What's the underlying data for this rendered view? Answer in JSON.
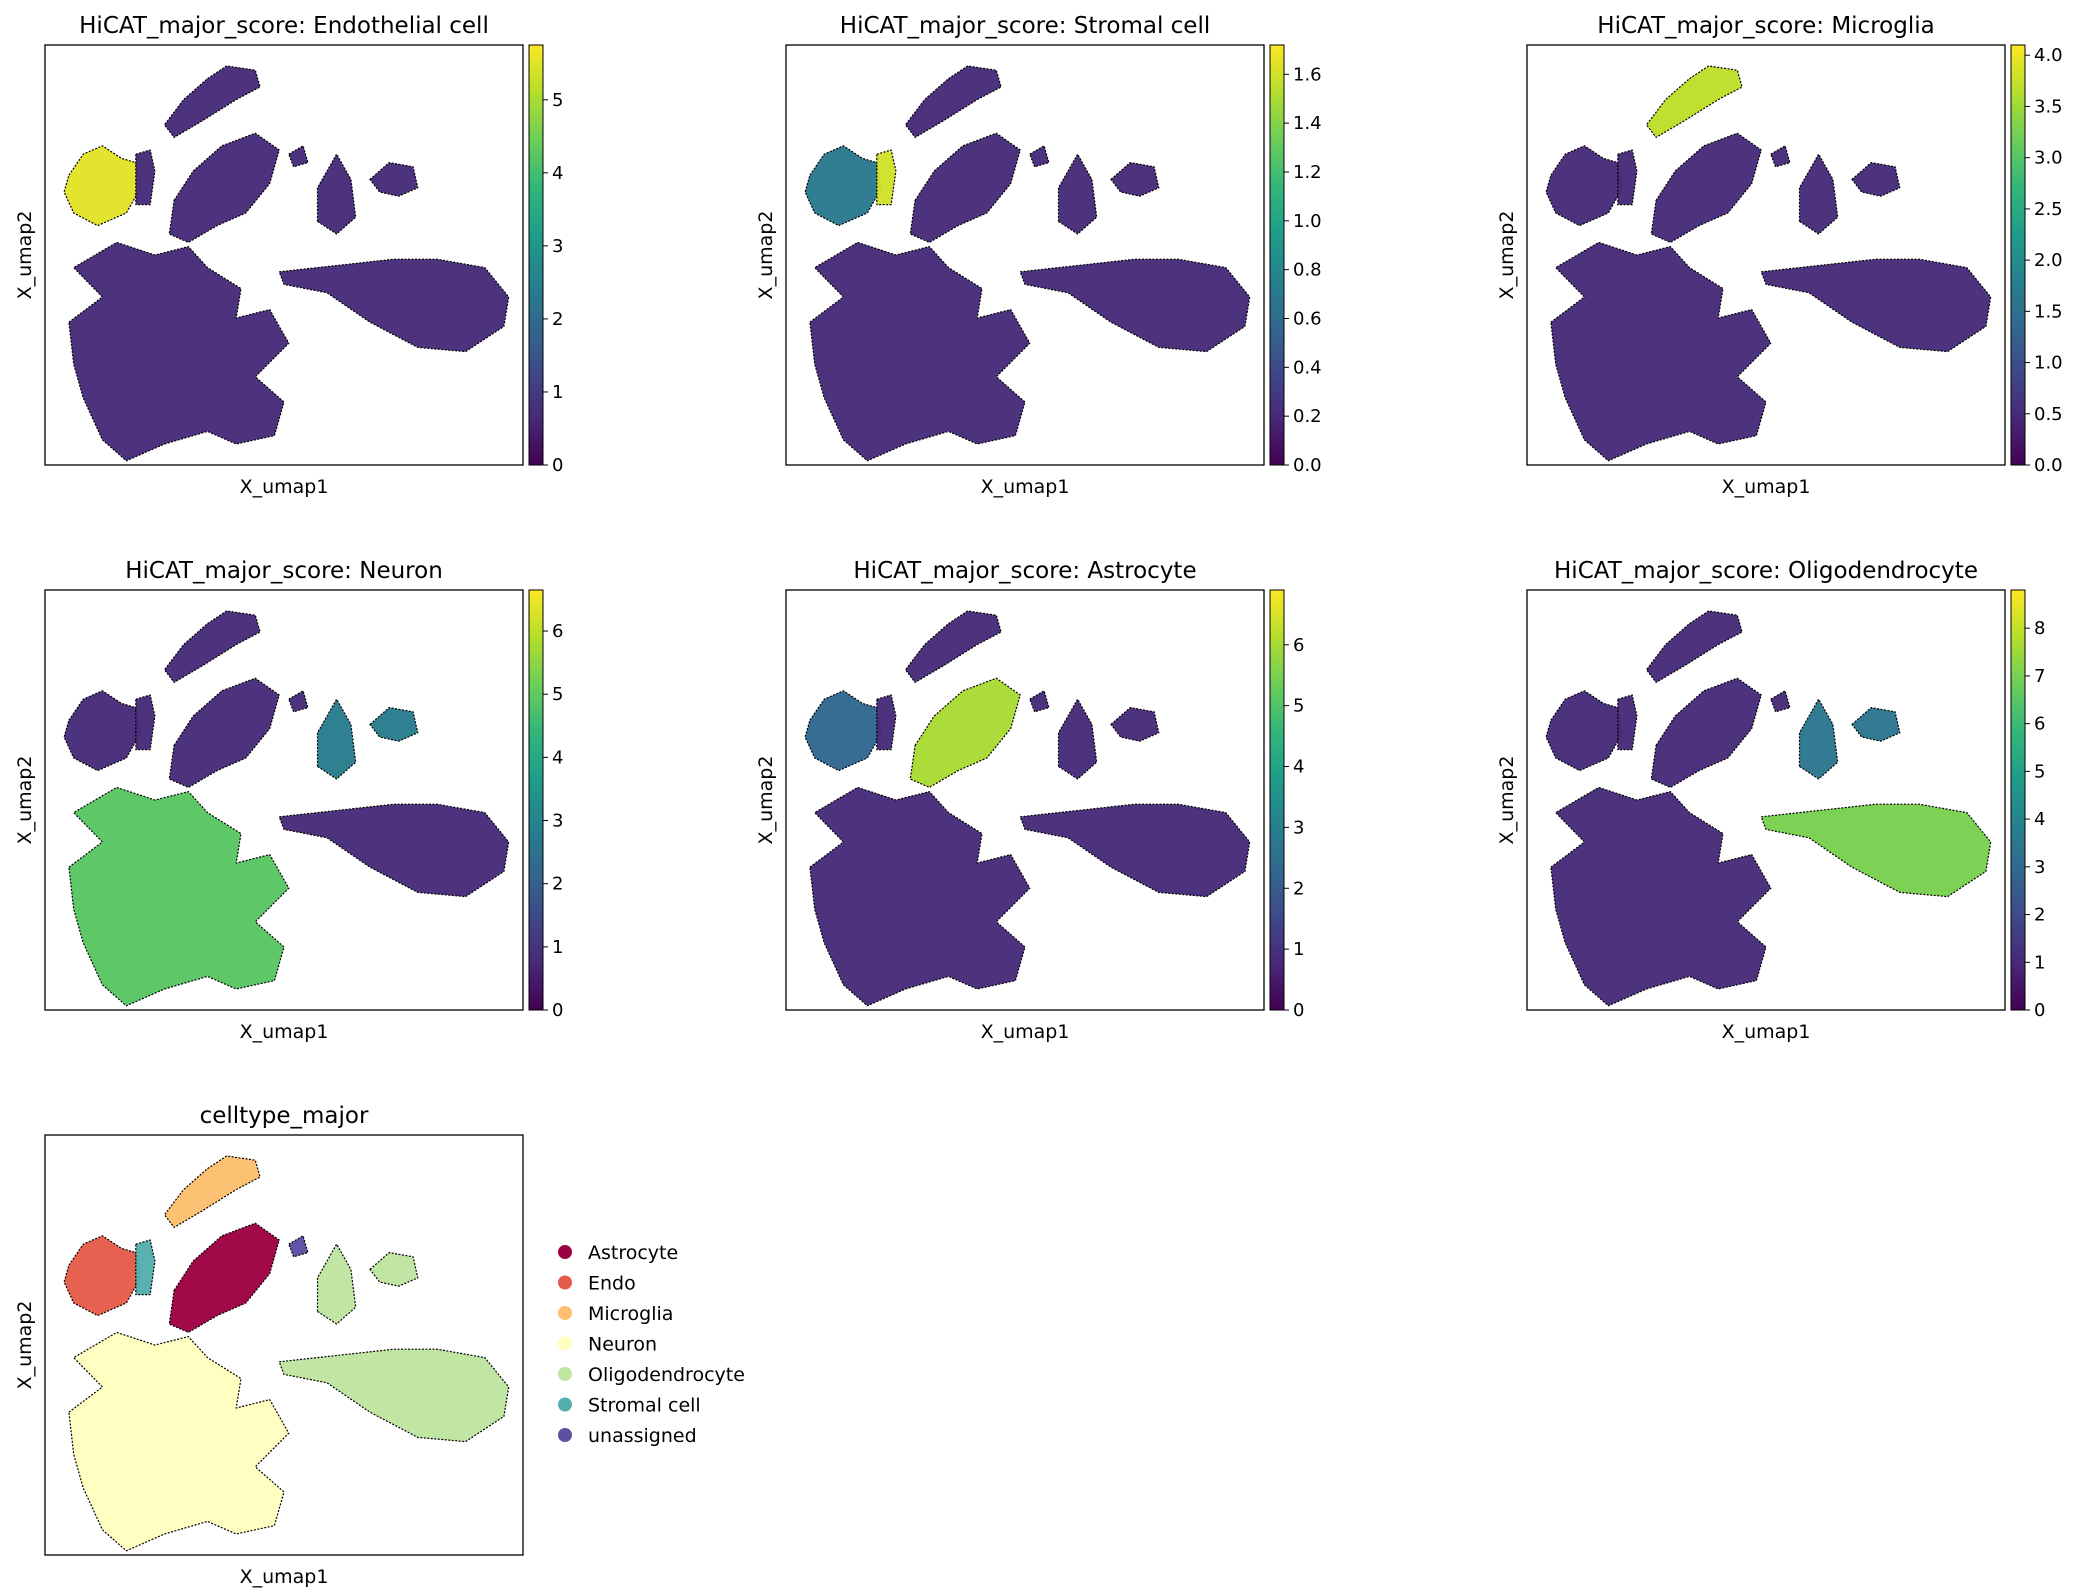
{
  "colors": {
    "viridis": [
      "#440154",
      "#482878",
      "#3e4989",
      "#31688e",
      "#26828e",
      "#1f9e89",
      "#35b779",
      "#6ece58",
      "#b5de2b",
      "#fde725"
    ],
    "background_cells": "#472c7a",
    "outline": "#000000"
  },
  "chart_data": [
    {
      "type": "scatter",
      "title": "HiCAT_major_score: Endothelial cell",
      "xlabel": "X_umap1",
      "ylabel": "X_umap2",
      "colormap": "viridis",
      "colorbar": {
        "min": 0,
        "max": 5.75,
        "ticks": [
          "0",
          "1",
          "2",
          "3",
          "4",
          "5"
        ],
        "tick_values": [
          0,
          1,
          2,
          3,
          4,
          5
        ]
      },
      "highlight": [
        {
          "cluster": "endo",
          "value": 5.5
        }
      ]
    },
    {
      "type": "scatter",
      "title": "HiCAT_major_score: Stromal cell",
      "xlabel": "X_umap1",
      "ylabel": "X_umap2",
      "colormap": "viridis",
      "colorbar": {
        "min": 0,
        "max": 1.72,
        "ticks": [
          "0.0",
          "0.2",
          "0.4",
          "0.6",
          "0.8",
          "1.0",
          "1.2",
          "1.4",
          "1.6"
        ],
        "tick_values": [
          0,
          0.2,
          0.4,
          0.6,
          0.8,
          1.0,
          1.2,
          1.4,
          1.6
        ]
      },
      "highlight": [
        {
          "cluster": "stromal",
          "value": 1.6
        },
        {
          "cluster": "endo",
          "value": 0.7
        }
      ]
    },
    {
      "type": "scatter",
      "title": "HiCAT_major_score: Microglia",
      "xlabel": "X_umap1",
      "ylabel": "X_umap2",
      "colormap": "viridis",
      "colorbar": {
        "min": 0,
        "max": 4.1,
        "ticks": [
          "0.0",
          "0.5",
          "1.0",
          "1.5",
          "2.0",
          "2.5",
          "3.0",
          "3.5",
          "4.0"
        ],
        "tick_values": [
          0,
          0.5,
          1.0,
          1.5,
          2.0,
          2.5,
          3.0,
          3.5,
          4.0
        ]
      },
      "highlight": [
        {
          "cluster": "microglia",
          "value": 3.7
        }
      ]
    },
    {
      "type": "scatter",
      "title": "HiCAT_major_score: Neuron",
      "xlabel": "X_umap1",
      "ylabel": "X_umap2",
      "colormap": "viridis",
      "colorbar": {
        "min": 0,
        "max": 6.65,
        "ticks": [
          "0",
          "1",
          "2",
          "3",
          "4",
          "5",
          "6"
        ],
        "tick_values": [
          0,
          1,
          2,
          3,
          4,
          5,
          6
        ]
      },
      "highlight": [
        {
          "cluster": "neuron",
          "value": 4.9
        },
        {
          "cluster": "oligo_small",
          "value": 2.8
        }
      ]
    },
    {
      "type": "scatter",
      "title": "HiCAT_major_score: Astrocyte",
      "xlabel": "X_umap1",
      "ylabel": "X_umap2",
      "colormap": "viridis",
      "colorbar": {
        "min": 0,
        "max": 6.9,
        "ticks": [
          "0",
          "1",
          "2",
          "3",
          "4",
          "5",
          "6"
        ],
        "tick_values": [
          0,
          1,
          2,
          3,
          4,
          5,
          6
        ]
      },
      "highlight": [
        {
          "cluster": "astrocyte",
          "value": 6.0
        },
        {
          "cluster": "endo",
          "value": 2.3
        }
      ]
    },
    {
      "type": "scatter",
      "title": "HiCAT_major_score: Oligodendrocyte",
      "xlabel": "X_umap1",
      "ylabel": "X_umap2",
      "colormap": "viridis",
      "colorbar": {
        "min": 0,
        "max": 8.8,
        "ticks": [
          "0",
          "1",
          "2",
          "3",
          "4",
          "5",
          "6",
          "7",
          "8"
        ],
        "tick_values": [
          0,
          1,
          2,
          3,
          4,
          5,
          6,
          7,
          8
        ]
      },
      "highlight": [
        {
          "cluster": "oligo_large",
          "value": 7.0
        },
        {
          "cluster": "oligo_small",
          "value": 3.5
        }
      ]
    },
    {
      "type": "scatter",
      "title": "celltype_major",
      "xlabel": "X_umap1",
      "ylabel": "X_umap2",
      "categorical": true,
      "legend_position": "right",
      "legend": [
        {
          "label": "Astrocyte",
          "color": "#9e0142"
        },
        {
          "label": "Endo",
          "color": "#e55c4a"
        },
        {
          "label": "Microglia",
          "color": "#fdbf6f"
        },
        {
          "label": "Neuron",
          "color": "#ffffbf"
        },
        {
          "label": "Oligodendrocyte",
          "color": "#bfe5a0"
        },
        {
          "label": "Stromal cell",
          "color": "#54aead"
        },
        {
          "label": "unassigned",
          "color": "#5e4fa2"
        }
      ],
      "cluster_colors": {
        "astrocyte": "#9e0142",
        "endo": "#e55c4a",
        "microglia": "#fdbf6f",
        "neuron": "#ffffbf",
        "oligo_large": "#bfe5a0",
        "oligo_small": "#bfe5a0",
        "stromal": "#54aead",
        "unassigned": "#5e4fa2"
      }
    }
  ]
}
